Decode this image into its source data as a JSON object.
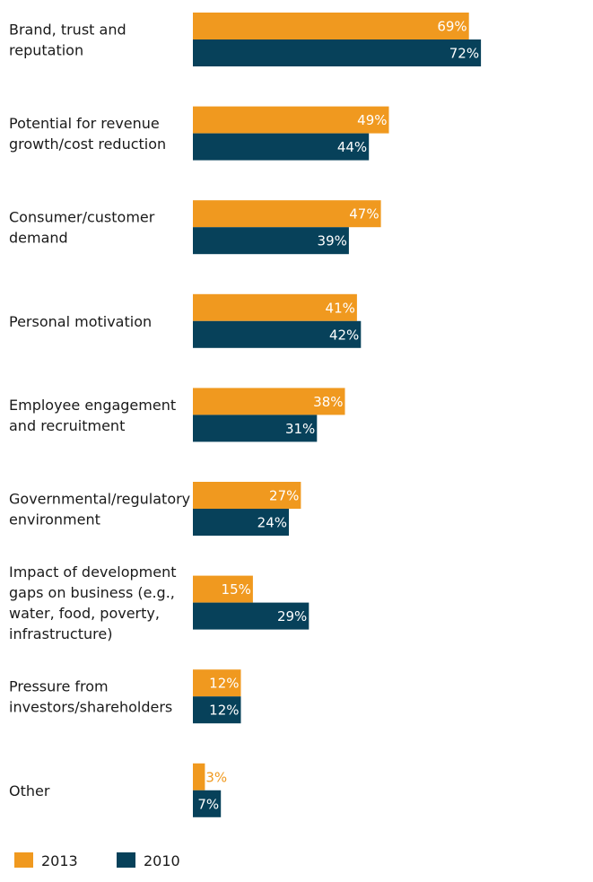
{
  "chart_data": {
    "type": "bar",
    "orientation": "horizontal",
    "title": "",
    "xlabel": "",
    "ylabel": "",
    "xlim": [
      0,
      100
    ],
    "grid": false,
    "legend_position": "bottom-left",
    "value_suffix": "%",
    "categories": [
      [
        "Brand, trust and",
        "reputation"
      ],
      [
        "Potential for revenue",
        "growth/cost reduction"
      ],
      [
        "Consumer/customer",
        "demand"
      ],
      [
        "Personal motivation"
      ],
      [
        "Employee engagement",
        "and recruitment"
      ],
      [
        "Governmental/regulatory",
        "environment"
      ],
      [
        "Impact of development",
        "gaps on business (e.g.,",
        "water, food, poverty,",
        "infrastructure)"
      ],
      [
        "Pressure from",
        "investors/shareholders"
      ],
      [
        "Other"
      ]
    ],
    "series": [
      {
        "name": "2013",
        "color": "#f0991f",
        "values": [
          69,
          49,
          47,
          41,
          38,
          27,
          15,
          12,
          3
        ]
      },
      {
        "name": "2010",
        "color": "#07415a",
        "values": [
          72,
          44,
          39,
          42,
          31,
          24,
          29,
          12,
          7
        ]
      }
    ]
  }
}
